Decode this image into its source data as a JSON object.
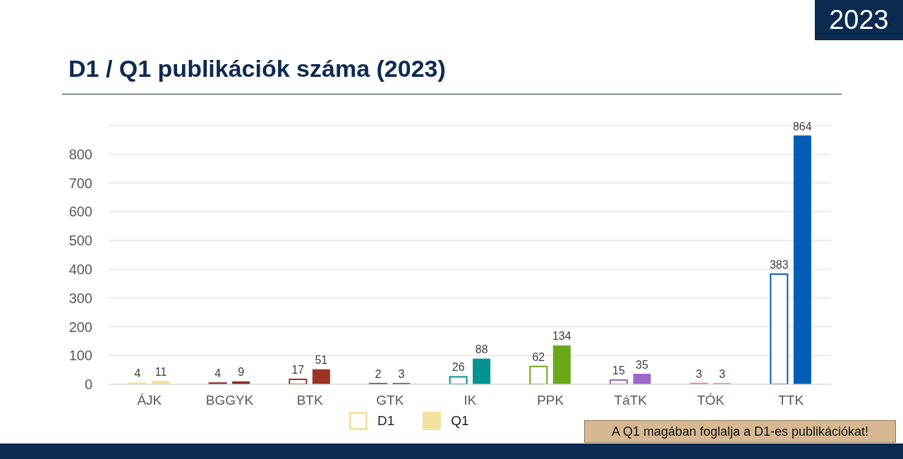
{
  "chart_data": {
    "type": "bar",
    "title": "D1 / Q1 publikációk száma (2023)",
    "annotations": [
      "2023",
      "A Q1 magában foglalja a D1-es publikációkat!"
    ],
    "categories": [
      "ÁJK",
      "BGGYK",
      "BTK",
      "GTK",
      "IK",
      "PPK",
      "TáTK",
      "TÓK",
      "TTK"
    ],
    "series": [
      {
        "name": "D1",
        "color": "#f3e2a0",
        "colors": [
          "#f3e2a0",
          "#8b2a2a",
          "#9c3324",
          "#5b2a6e",
          "#00938f",
          "#6aa81a",
          "#9966cc",
          "#f08080",
          "#005eb8"
        ],
        "values": [
          4,
          4,
          17,
          2,
          26,
          62,
          15,
          3,
          383
        ]
      },
      {
        "name": "Q1",
        "color": "#f3e2a0",
        "colors": [
          "#f3e2a0",
          "#8b2a2a",
          "#9c3324",
          "#5b2a6e",
          "#00938f",
          "#6aa81a",
          "#9966cc",
          "#f08080",
          "#005eb8"
        ],
        "values": [
          11,
          9,
          51,
          3,
          88,
          134,
          35,
          3,
          864
        ]
      }
    ],
    "ylim": [
      0,
      900
    ],
    "yticks": [
      0,
      100,
      200,
      300,
      400,
      500,
      600,
      700,
      800
    ],
    "grid": "y",
    "legend": "bottom",
    "data_labels": true
  }
}
